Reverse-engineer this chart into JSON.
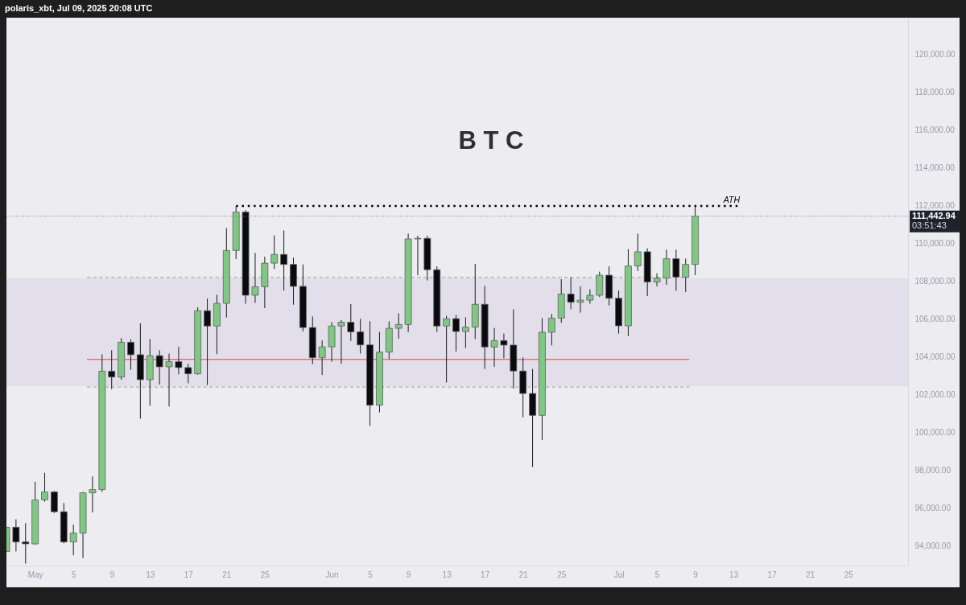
{
  "chart_data": {
    "type": "candlestick",
    "title": "B T C",
    "annotations": [
      "polaris_xbt, Jul 09, 2025 20:08 UTC"
    ],
    "x": [
      "2025-04-28",
      "2025-04-29",
      "2025-04-30",
      "2025-05-01",
      "2025-05-02",
      "2025-05-03",
      "2025-05-04",
      "2025-05-05",
      "2025-05-06",
      "2025-05-07",
      "2025-05-08",
      "2025-05-09",
      "2025-05-10",
      "2025-05-11",
      "2025-05-12",
      "2025-05-13",
      "2025-05-14",
      "2025-05-15",
      "2025-05-16",
      "2025-05-17",
      "2025-05-18",
      "2025-05-19",
      "2025-05-20",
      "2025-05-21",
      "2025-05-22",
      "2025-05-23",
      "2025-05-24",
      "2025-05-25",
      "2025-05-26",
      "2025-05-27",
      "2025-05-28",
      "2025-05-29",
      "2025-05-30",
      "2025-05-31",
      "2025-06-01",
      "2025-06-02",
      "2025-06-03",
      "2025-06-04",
      "2025-06-05",
      "2025-06-06",
      "2025-06-07",
      "2025-06-08",
      "2025-06-09",
      "2025-06-10",
      "2025-06-11",
      "2025-06-12",
      "2025-06-13",
      "2025-06-14",
      "2025-06-15",
      "2025-06-16",
      "2025-06-17",
      "2025-06-18",
      "2025-06-19",
      "2025-06-20",
      "2025-06-21",
      "2025-06-22",
      "2025-06-23",
      "2025-06-24",
      "2025-06-25",
      "2025-06-26",
      "2025-06-27",
      "2025-06-28",
      "2025-06-29",
      "2025-06-30",
      "2025-07-01",
      "2025-07-02",
      "2025-07-03",
      "2025-07-04",
      "2025-07-05",
      "2025-07-06",
      "2025-07-07",
      "2025-07-08",
      "2025-07-09"
    ],
    "ohlc": [
      [
        93700,
        94980,
        93700,
        94980
      ],
      [
        94980,
        95400,
        93700,
        94200
      ],
      [
        94200,
        95190,
        93060,
        94100
      ],
      [
        94100,
        97390,
        94050,
        96430
      ],
      [
        96430,
        97860,
        96330,
        96850
      ],
      [
        96850,
        96900,
        95730,
        95800
      ],
      [
        95800,
        96260,
        94130,
        94200
      ],
      [
        94200,
        95120,
        93490,
        94670
      ],
      [
        94670,
        96850,
        93350,
        96800
      ],
      [
        96800,
        97670,
        95760,
        96970
      ],
      [
        96970,
        104130,
        96850,
        103240
      ],
      [
        103240,
        104350,
        102290,
        102930
      ],
      [
        102930,
        104990,
        102790,
        104770
      ],
      [
        104770,
        104920,
        103310,
        104110
      ],
      [
        104110,
        105770,
        100730,
        102790
      ],
      [
        102790,
        104940,
        101410,
        104060
      ],
      [
        104060,
        104350,
        102530,
        103470
      ],
      [
        103470,
        104170,
        101370,
        103740
      ],
      [
        103740,
        104530,
        103070,
        103430
      ],
      [
        103430,
        103640,
        102600,
        103100
      ],
      [
        103100,
        106620,
        103050,
        106440
      ],
      [
        106440,
        107090,
        102500,
        105630
      ],
      [
        105630,
        107290,
        104140,
        106830
      ],
      [
        106830,
        110810,
        106080,
        109630
      ],
      [
        109630,
        111980,
        109170,
        111660
      ],
      [
        111660,
        111770,
        106810,
        107260
      ],
      [
        107260,
        109500,
        106860,
        107710
      ],
      [
        107710,
        109300,
        106580,
        108960
      ],
      [
        108960,
        110430,
        108650,
        109420
      ],
      [
        109420,
        110690,
        107510,
        108890
      ],
      [
        108890,
        109250,
        106760,
        107730
      ],
      [
        107730,
        108890,
        105340,
        105550
      ],
      [
        105550,
        106140,
        103610,
        103950
      ],
      [
        103950,
        104870,
        103040,
        104530
      ],
      [
        104530,
        105840,
        103740,
        105630
      ],
      [
        105630,
        105940,
        103640,
        105830
      ],
      [
        105830,
        106790,
        104840,
        105320
      ],
      [
        105320,
        106010,
        104170,
        104630
      ],
      [
        104630,
        105880,
        100350,
        101440
      ],
      [
        101440,
        105320,
        101060,
        104250
      ],
      [
        104250,
        105880,
        103890,
        105510
      ],
      [
        105510,
        106300,
        104960,
        105710
      ],
      [
        105710,
        110520,
        105300,
        110240
      ],
      [
        110240,
        110410,
        108320,
        110270
      ],
      [
        110270,
        110410,
        108040,
        108610
      ],
      [
        108610,
        108790,
        105320,
        105630
      ],
      [
        105630,
        106170,
        102640,
        106020
      ],
      [
        106020,
        106220,
        104280,
        105340
      ],
      [
        105340,
        106090,
        104460,
        105570
      ],
      [
        105570,
        108920,
        104940,
        106780
      ],
      [
        106780,
        107760,
        103360,
        104520
      ],
      [
        104520,
        105530,
        103470,
        104860
      ],
      [
        104860,
        105230,
        103920,
        104620
      ],
      [
        104620,
        106510,
        102320,
        103250
      ],
      [
        103250,
        103970,
        100800,
        102060
      ],
      [
        102060,
        103360,
        98170,
        100900
      ],
      [
        100900,
        106050,
        99590,
        105300
      ],
      [
        105300,
        106270,
        104600,
        106050
      ],
      [
        106050,
        108110,
        105800,
        107320
      ],
      [
        107320,
        108210,
        106520,
        106890
      ],
      [
        106890,
        107730,
        106340,
        107000
      ],
      [
        107000,
        107570,
        106810,
        107260
      ],
      [
        107260,
        108510,
        107160,
        108320
      ],
      [
        108320,
        108790,
        106720,
        107100
      ],
      [
        107100,
        107510,
        105230,
        105640
      ],
      [
        105640,
        109700,
        105100,
        108810
      ],
      [
        108810,
        110520,
        108540,
        109560
      ],
      [
        109560,
        109740,
        107220,
        107960
      ],
      [
        107960,
        108420,
        107730,
        108170
      ],
      [
        108170,
        109670,
        107810,
        109190
      ],
      [
        109190,
        109670,
        107500,
        108220
      ],
      [
        108220,
        109200,
        107430,
        108890
      ],
      [
        108890,
        111990,
        108320,
        111442.94
      ]
    ],
    "colors": [
      "#81c784",
      "#0b0b0f",
      "#0b0b0f",
      "#81c784",
      "#81c784",
      "#0b0b0f",
      "#0b0b0f",
      "#81c784",
      "#81c784",
      "#81c784",
      "#81c784",
      "#0b0b0f",
      "#81c784",
      "#0b0b0f",
      "#0b0b0f",
      "#81c784",
      "#0b0b0f",
      "#81c784",
      "#0b0b0f",
      "#0b0b0f",
      "#81c784",
      "#0b0b0f",
      "#81c784",
      "#81c784",
      "#81c784",
      "#0b0b0f",
      "#81c784",
      "#81c784",
      "#81c784",
      "#0b0b0f",
      "#0b0b0f",
      "#0b0b0f",
      "#0b0b0f",
      "#81c784",
      "#81c784",
      "#81c784",
      "#0b0b0f",
      "#0b0b0f",
      "#0b0b0f",
      "#81c784",
      "#81c784",
      "#81c784",
      "#81c784",
      "#81c784",
      "#0b0b0f",
      "#0b0b0f",
      "#81c784",
      "#0b0b0f",
      "#81c784",
      "#81c784",
      "#0b0b0f",
      "#81c784",
      "#0b0b0f",
      "#0b0b0f",
      "#0b0b0f",
      "#0b0b0f",
      "#81c784",
      "#81c784",
      "#81c784",
      "#0b0b0f",
      "#81c784",
      "#81c784",
      "#81c784",
      "#0b0b0f",
      "#0b0b0f",
      "#81c784",
      "#81c784",
      "#0b0b0f",
      "#81c784",
      "#81c784",
      "#0b0b0f",
      "#81c784",
      "#81c784"
    ],
    "xlim": [
      "2025-04-28",
      "2025-07-31T06:00"
    ],
    "xticks": [
      {
        "value": "2025-05-01",
        "label": "May"
      },
      {
        "value": "2025-05-05",
        "label": "5"
      },
      {
        "value": "2025-05-09",
        "label": "9"
      },
      {
        "value": "2025-05-13",
        "label": "13"
      },
      {
        "value": "2025-05-17",
        "label": "17"
      },
      {
        "value": "2025-05-21",
        "label": "21"
      },
      {
        "value": "2025-05-25",
        "label": "25"
      },
      {
        "value": "2025-06-01",
        "label": "Jun"
      },
      {
        "value": "2025-06-05",
        "label": "5"
      },
      {
        "value": "2025-06-09",
        "label": "9"
      },
      {
        "value": "2025-06-13",
        "label": "13"
      },
      {
        "value": "2025-06-17",
        "label": "17"
      },
      {
        "value": "2025-06-21",
        "label": "21"
      },
      {
        "value": "2025-06-25",
        "label": "25"
      },
      {
        "value": "2025-07-01",
        "label": "Jul"
      },
      {
        "value": "2025-07-05",
        "label": "5"
      },
      {
        "value": "2025-07-09",
        "label": "9"
      },
      {
        "value": "2025-07-13",
        "label": "13"
      },
      {
        "value": "2025-07-17",
        "label": "17"
      },
      {
        "value": "2025-07-21",
        "label": "21"
      },
      {
        "value": "2025-07-25",
        "label": "25"
      }
    ],
    "ylim": [
      92950,
      121950
    ],
    "yticks": [
      {
        "value": 94000,
        "label": "94,000.00"
      },
      {
        "value": 96000,
        "label": "96,000.00"
      },
      {
        "value": 98000,
        "label": "98,000.00"
      },
      {
        "value": 100000,
        "label": "100,000.00"
      },
      {
        "value": 102000,
        "label": "102,000.00"
      },
      {
        "value": 104000,
        "label": "104,000.00"
      },
      {
        "value": 106000,
        "label": "106,000.00"
      },
      {
        "value": 108000,
        "label": "108,000.00"
      },
      {
        "value": 110000,
        "label": "110,000.00"
      },
      {
        "value": 112000,
        "label": "112,000.00"
      },
      {
        "value": 114000,
        "label": "114,000.00"
      },
      {
        "value": 116000,
        "label": "116,000.00"
      },
      {
        "value": 118000,
        "label": "118,000.00"
      },
      {
        "value": 120000,
        "label": "120,000.00"
      }
    ],
    "series": [
      {
        "type": "line",
        "x": [
          "2025-05-06T10:00",
          "2025-07-08T09:00"
        ],
        "values": [
          108200,
          108200
        ],
        "color": "#9b9ba0",
        "line_style": "dashed"
      },
      {
        "type": "line",
        "x": [
          "2025-05-06T10:00",
          "2025-07-08T09:00"
        ],
        "values": [
          102400,
          102400
        ],
        "color": "#9b9ba0",
        "line_style": "dashed"
      },
      {
        "type": "line",
        "x": [
          "2025-05-06T10:00",
          "2025-07-08T09:00"
        ],
        "values": [
          103860,
          103860
        ],
        "color": "#d9434e",
        "line_style": "solid"
      },
      {
        "type": "line",
        "name": "ATH",
        "x": [
          "2025-05-22",
          "2025-07-13T16:00"
        ],
        "values": [
          111990,
          111990
        ],
        "color": "#000000",
        "line_style": "dotted"
      }
    ],
    "bands": [
      {
        "axis": "y",
        "from": 102450,
        "to": 108150,
        "color": "#e2dfea"
      }
    ],
    "ref_lines": [
      {
        "axis": "y",
        "value": 111442.94,
        "label": "111,442.94\n03:51:43",
        "color": "#787b86",
        "line_style": "dotted"
      }
    ]
  }
}
